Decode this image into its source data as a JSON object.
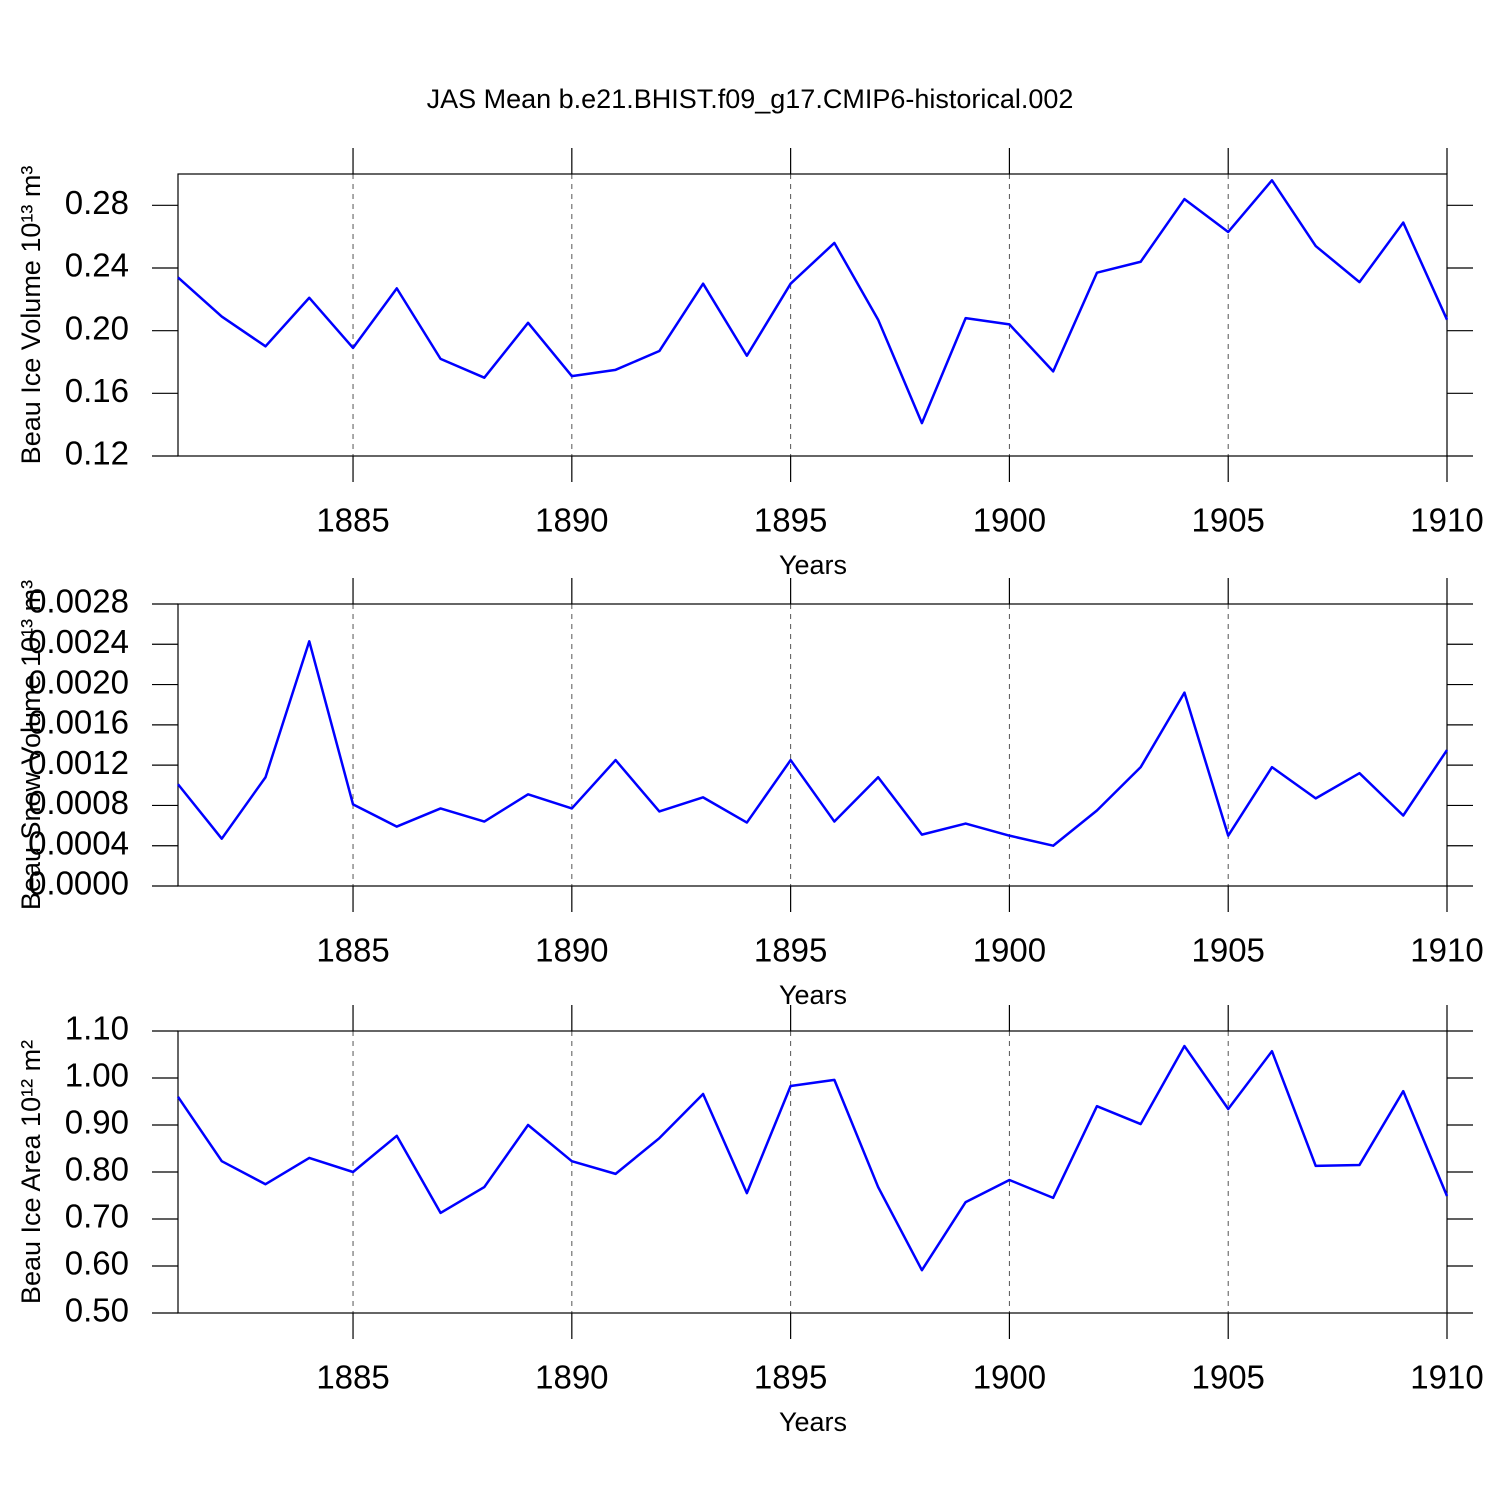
{
  "title": "JAS Mean b.e21.BHIST.f09_g17.CMIP6-historical.002",
  "chart_data": [
    {
      "type": "line",
      "ylabel": "Beau Ice Volume 10¹³ m³",
      "xlabel": "Years",
      "x": [
        1881,
        1882,
        1883,
        1884,
        1885,
        1886,
        1887,
        1888,
        1889,
        1890,
        1891,
        1892,
        1893,
        1894,
        1895,
        1896,
        1897,
        1898,
        1899,
        1900,
        1901,
        1902,
        1903,
        1904,
        1905,
        1906,
        1907,
        1908,
        1909,
        1910
      ],
      "series": [
        {
          "color": "#0000ff",
          "values": [
            0.234,
            0.209,
            0.19,
            0.221,
            0.189,
            0.227,
            0.182,
            0.17,
            0.205,
            0.171,
            0.175,
            0.187,
            0.23,
            0.184,
            0.23,
            0.256,
            0.207,
            0.141,
            0.208,
            0.204,
            0.174,
            0.237,
            0.244,
            0.284,
            0.263,
            0.296,
            0.254,
            0.231,
            0.269,
            0.207
          ]
        }
      ],
      "xlim": [
        1881,
        1910
      ],
      "xticks": [
        1885,
        1890,
        1895,
        1900,
        1905,
        1910
      ],
      "ylim": [
        0.12,
        0.3
      ],
      "yticks": [
        0.12,
        0.16,
        {
          "value": 0.2,
          "label": "0.20"
        },
        0.24,
        0.28
      ],
      "grid": true
    },
    {
      "type": "line",
      "ylabel": "Beau Snow Volume 10¹³ m³",
      "xlabel": "Years",
      "x": [
        1881,
        1882,
        1883,
        1884,
        1885,
        1886,
        1887,
        1888,
        1889,
        1890,
        1891,
        1892,
        1893,
        1894,
        1895,
        1896,
        1897,
        1898,
        1899,
        1900,
        1901,
        1902,
        1903,
        1904,
        1905,
        1906,
        1907,
        1908,
        1909,
        1910
      ],
      "series": [
        {
          "color": "#0000ff",
          "values": [
            0.00101,
            0.00047,
            0.00108,
            0.00243,
            0.00081,
            0.00059,
            0.00077,
            0.00064,
            0.00091,
            0.00077,
            0.00125,
            0.00074,
            0.00088,
            0.00063,
            0.00125,
            0.00064,
            0.00108,
            0.00051,
            0.00062,
            0.0005,
            0.0004,
            0.00075,
            0.00118,
            0.00192,
            0.0005,
            0.00118,
            0.00087,
            0.00112,
            0.0007,
            0.00135
          ]
        }
      ],
      "xlim": [
        1881,
        1910
      ],
      "xticks": [
        1885,
        1890,
        1895,
        1900,
        1905,
        1910
      ],
      "ylim": [
        0,
        0.0028
      ],
      "yticks": [
        {
          "value": 0,
          "label": "0.0000"
        },
        0.0004,
        0.0008,
        0.0012,
        0.0016,
        {
          "value": 0.002,
          "label": "0.0020"
        },
        0.0024,
        0.0028
      ],
      "grid": true
    },
    {
      "type": "line",
      "ylabel": "Beau Ice Area 10¹² m²",
      "xlabel": "Years",
      "x": [
        1881,
        1882,
        1883,
        1884,
        1885,
        1886,
        1887,
        1888,
        1889,
        1890,
        1891,
        1892,
        1893,
        1894,
        1895,
        1896,
        1897,
        1898,
        1899,
        1900,
        1901,
        1902,
        1903,
        1904,
        1905,
        1906,
        1907,
        1908,
        1909,
        1910
      ],
      "series": [
        {
          "color": "#0000ff",
          "values": [
            0.96,
            0.823,
            0.774,
            0.83,
            0.8,
            0.877,
            0.713,
            0.768,
            0.9,
            0.823,
            0.796,
            0.872,
            0.966,
            0.755,
            0.983,
            0.996,
            0.768,
            0.591,
            0.736,
            0.783,
            0.745,
            0.94,
            0.902,
            1.068,
            0.934,
            1.057,
            0.813,
            0.815,
            0.972,
            0.749
          ]
        }
      ],
      "xlim": [
        1881,
        1910
      ],
      "xticks": [
        1885,
        1890,
        1895,
        1900,
        1905,
        1910
      ],
      "ylim": [
        0.5,
        1.1
      ],
      "yticks": [
        {
          "value": 0.5,
          "label": "0.50"
        },
        {
          "value": 0.6,
          "label": "0.60"
        },
        {
          "value": 0.7,
          "label": "0.70"
        },
        {
          "value": 0.8,
          "label": "0.80"
        },
        {
          "value": 0.9,
          "label": "0.90"
        },
        {
          "value": 1,
          "label": "1.00"
        },
        {
          "value": 1.1,
          "label": "1.10"
        }
      ],
      "grid": true
    }
  ]
}
